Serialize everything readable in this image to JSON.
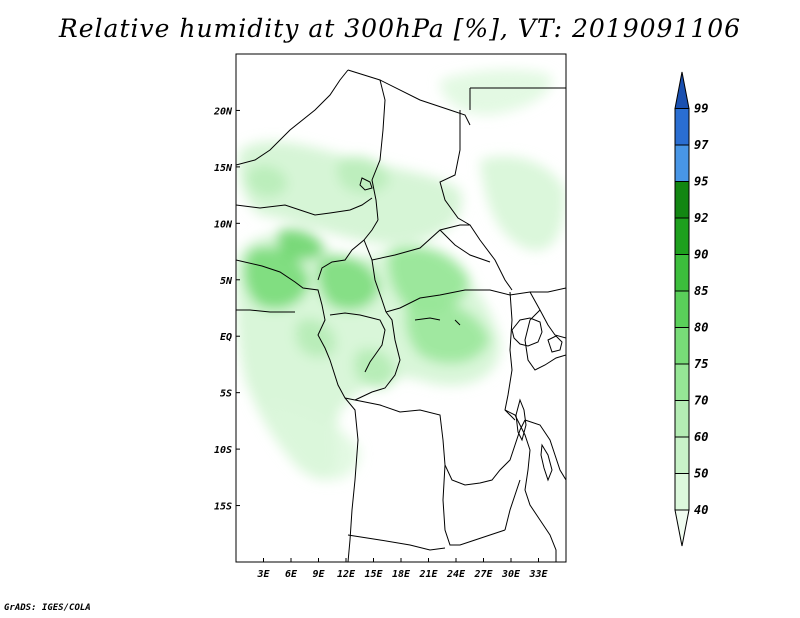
{
  "title": "Relative humidity at 300hPa [%], VT: 2019091106",
  "credit": "GrADS: IGES/COLA",
  "map": {
    "variable": "Relative humidity",
    "level": "300hPa",
    "units": "%",
    "valid_time": "2019091106",
    "lon_range": [
      0,
      36
    ],
    "lat_range": [
      -20,
      25
    ],
    "lon_ticks": [
      "3E",
      "6E",
      "9E",
      "12E",
      "15E",
      "18E",
      "21E",
      "24E",
      "27E",
      "30E",
      "33E"
    ],
    "lat_ticks": [
      "20N",
      "15N",
      "10N",
      "5N",
      "EQ",
      "5S",
      "10S",
      "15S"
    ]
  },
  "colorbar": {
    "levels": [
      "40",
      "50",
      "60",
      "70",
      "75",
      "80",
      "85",
      "90",
      "92",
      "95",
      "97",
      "99"
    ],
    "colors": [
      "#f0fcf0",
      "#dcf8dc",
      "#c8f2c8",
      "#b4ecb4",
      "#96e696",
      "#78dc78",
      "#5ad05a",
      "#3cbe3c",
      "#1ea01e",
      "#128612",
      "#4896e6",
      "#2a6ed2",
      "#1a50b0"
    ]
  }
}
